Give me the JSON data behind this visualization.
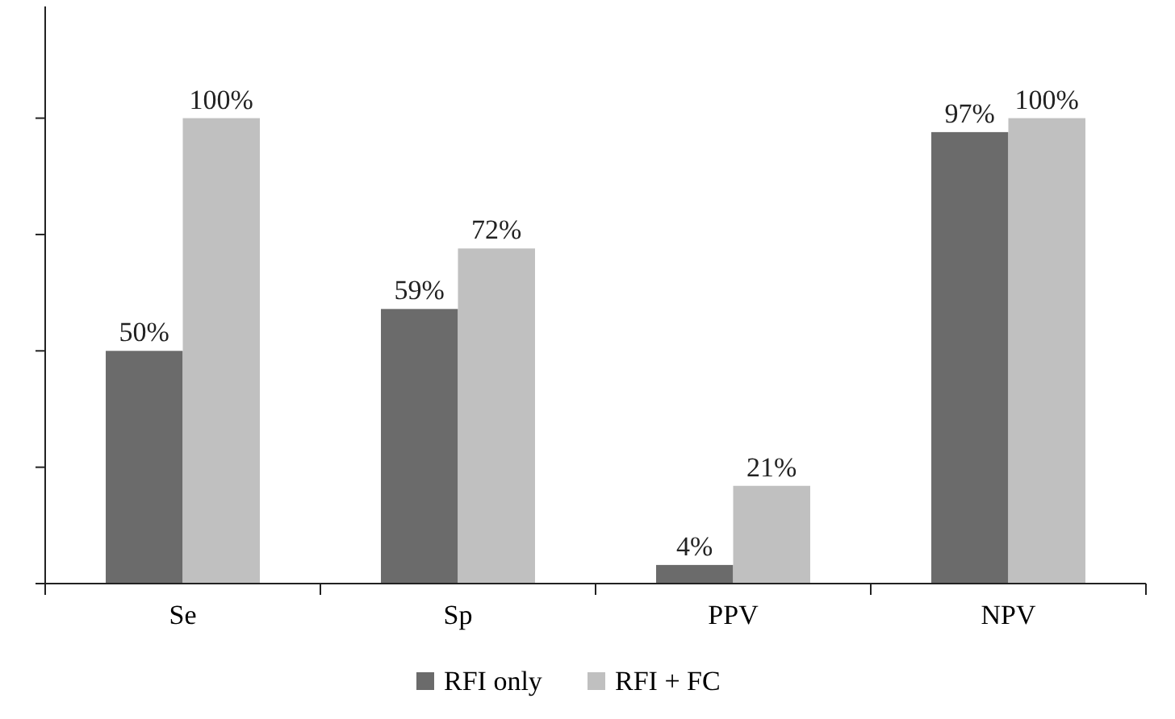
{
  "chart_data": {
    "type": "bar",
    "categories": [
      "Se",
      "Sp",
      "PPV",
      "NPV"
    ],
    "series": [
      {
        "name": "RFI only",
        "color": "#6b6b6b",
        "values": [
          50,
          59,
          4,
          97
        ],
        "value_labels": [
          "50%",
          "59%",
          "4%",
          "97%"
        ]
      },
      {
        "name": "RFI + FC",
        "color": "#c0c0c0",
        "values": [
          100,
          72,
          21,
          100
        ],
        "value_labels": [
          "100%",
          "72%",
          "21%",
          "100%"
        ]
      }
    ],
    "ylim": [
      0,
      124
    ],
    "yticks": [
      {
        "value": 0,
        "label": null
      },
      {
        "value": 25,
        "label": null
      },
      {
        "value": 50,
        "label": null
      },
      {
        "value": 75,
        "label": null
      },
      {
        "value": 100,
        "label": null
      }
    ],
    "tick_labels": "x",
    "legend": "bottom",
    "grid": false
  }
}
